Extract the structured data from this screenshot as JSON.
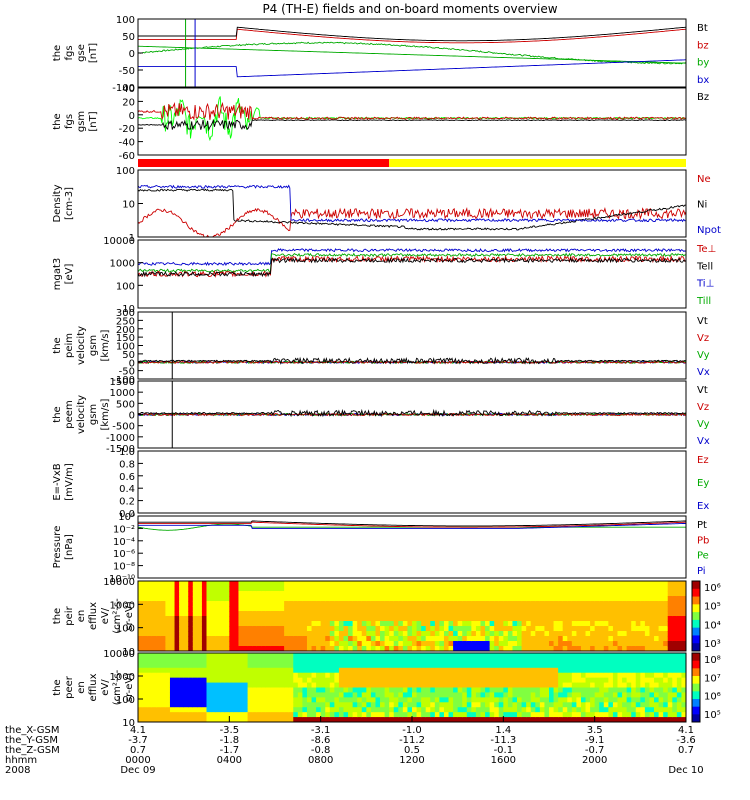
{
  "chart_data": {
    "type": "line",
    "title": "P4 (TH-E) fields and on-board moments overview",
    "date": "2008",
    "panels": [
      {
        "id": "fgs-gse",
        "ylabel": [
          "the",
          "fgs",
          "gse",
          "[nT]"
        ],
        "ticks": [
          "100",
          "50",
          "0",
          "-50",
          "-100"
        ],
        "ylim": [
          -100,
          100
        ],
        "legend": [
          {
            "name": "Bt",
            "color": "#000000"
          },
          {
            "name": "bz",
            "color": "#cc0000"
          },
          {
            "name": "by",
            "color": "#00aa00"
          },
          {
            "name": "bx",
            "color": "#0000cc"
          }
        ]
      },
      {
        "id": "fgs-gsm",
        "ylabel": [
          "the",
          "fgs",
          "gsm",
          "[nT]"
        ],
        "ticks": [
          "40",
          "20",
          "0",
          "-20",
          "-40",
          "-60"
        ],
        "ylim": [
          -70,
          40
        ],
        "legend": [
          {
            "name": "Bz",
            "color": "#000000"
          }
        ]
      },
      {
        "id": "density",
        "ylabel": [
          "Density",
          "[cm-3]"
        ],
        "ticks": [
          "100",
          "10",
          "1"
        ],
        "log": true,
        "ylim": [
          0.4,
          200
        ],
        "legend": [
          {
            "name": "Ne",
            "color": "#cc0000"
          },
          {
            "name": "Ni",
            "color": "#000000"
          },
          {
            "name": "Npot",
            "color": "#0000cc"
          }
        ]
      },
      {
        "id": "temperature",
        "ylabel": [
          "mgat3",
          "[eV]"
        ],
        "ticks": [
          "10000",
          "1000",
          "100",
          "10"
        ],
        "log": true,
        "ylim": [
          10,
          15000
        ],
        "legend": [
          {
            "name": "Te⊥",
            "color": "#cc0000"
          },
          {
            "name": "Tell",
            "color": "#000000"
          },
          {
            "name": "Ti⊥",
            "color": "#0000cc"
          },
          {
            "name": "Till",
            "color": "#00aa00"
          }
        ]
      },
      {
        "id": "peim-velocity",
        "ylabel": [
          "the",
          "peim",
          "velocity",
          "gsm",
          "[km/s]"
        ],
        "ticks": [
          "300",
          "250",
          "200",
          "150",
          "100",
          "50",
          "0",
          "-50",
          "-100"
        ],
        "ylim": [
          -100,
          300
        ],
        "legend": [
          {
            "name": "Vt",
            "color": "#000000"
          },
          {
            "name": "Vz",
            "color": "#cc0000"
          },
          {
            "name": "Vy",
            "color": "#00aa00"
          },
          {
            "name": "Vx",
            "color": "#0000cc"
          }
        ]
      },
      {
        "id": "peem-velocity",
        "ylabel": [
          "the",
          "peem",
          "velocity",
          "gsm",
          "[km/s]"
        ],
        "ticks": [
          "1500",
          "1000",
          "500",
          "0",
          "-500",
          "-1000",
          "-1500"
        ],
        "ylim": [
          -1500,
          1500
        ],
        "legend": [
          {
            "name": "Vt",
            "color": "#000000"
          },
          {
            "name": "Vz",
            "color": "#cc0000"
          },
          {
            "name": "Vy",
            "color": "#00aa00"
          },
          {
            "name": "Vx",
            "color": "#0000cc"
          }
        ]
      },
      {
        "id": "efield",
        "ylabel": [
          "E=-VxB",
          "[mV/m]"
        ],
        "ticks": [
          "1.0",
          "0.8",
          "0.6",
          "0.4",
          "0.2",
          "0.0"
        ],
        "ylim": [
          0,
          1
        ],
        "legend": [
          {
            "name": "Ez",
            "color": "#cc0000"
          },
          {
            "name": "Ey",
            "color": "#00aa00"
          },
          {
            "name": "Ex",
            "color": "#0000cc"
          }
        ]
      },
      {
        "id": "pressure",
        "ylabel": [
          "Pressure",
          "[nPa]"
        ],
        "ticks": [
          "10⁰",
          "10⁻²",
          "10⁻⁴",
          "10⁻⁶",
          "10⁻⁸",
          "10⁻¹⁰"
        ],
        "log": true,
        "ylim": [
          1e-10,
          10
        ],
        "legend": [
          {
            "name": "Pt",
            "color": "#000000"
          },
          {
            "name": "Pb",
            "color": "#cc0000"
          },
          {
            "name": "Pe",
            "color": "#00aa00"
          },
          {
            "name": "Pi",
            "color": "#0000cc"
          }
        ]
      },
      {
        "id": "peir-spectrogram",
        "type": "heatmap",
        "ylabel": [
          "the",
          "peir",
          "en",
          "efflux",
          "eV/",
          "(cm²-s-",
          "sr-eV)"
        ],
        "ticks": [
          "10000",
          "1000",
          "100",
          "10"
        ],
        "log": true,
        "colorbar": [
          "10⁶",
          "10⁵",
          "10⁴",
          "10³"
        ]
      },
      {
        "id": "peer-spectrogram",
        "type": "heatmap",
        "ylabel": [
          "the",
          "peer",
          "en",
          "efflux",
          "eV/",
          "(cm²-s-",
          "sr-eV)"
        ],
        "ticks": [
          "10000",
          "1000",
          "100",
          "10"
        ],
        "log": true,
        "colorbar": [
          "10⁸",
          "10⁷",
          "10⁶",
          "10⁵"
        ]
      }
    ],
    "x_axis": {
      "row_labels": [
        "the_X-GSM",
        "the_Y-GSM",
        "the_Z-GSM",
        "hhmm"
      ],
      "ticks": [
        {
          "t": 0,
          "x": "4.1",
          "y": "-3.7",
          "z": "0.7",
          "hhmm": "0000",
          "date": "Dec 09"
        },
        {
          "t": 240,
          "x": "-3.5",
          "y": "-1.8",
          "z": "-1.7",
          "hhmm": "0400",
          "date": ""
        },
        {
          "t": 480,
          "x": "-3.1",
          "y": "-8.6",
          "z": "-0.8",
          "hhmm": "0800",
          "date": ""
        },
        {
          "t": 720,
          "x": "-1.0",
          "y": "-11.2",
          "z": "0.5",
          "hhmm": "1200",
          "date": ""
        },
        {
          "t": 960,
          "x": "1.4",
          "y": "-11.3",
          "z": "-0.1",
          "hhmm": "1600",
          "date": ""
        },
        {
          "t": 1200,
          "x": "3.5",
          "y": "-9.1",
          "z": "-0.7",
          "hhmm": "2000",
          "date": ""
        },
        {
          "t": 1440,
          "x": "4.1",
          "y": "-3.6",
          "z": "0.7",
          "hhmm": "",
          "date": "Dec 10"
        }
      ]
    },
    "mode_bar": [
      {
        "start": 0,
        "end": 660,
        "color": "#ff0000"
      },
      {
        "start": 660,
        "end": 1440,
        "color": "#ffff00"
      }
    ]
  }
}
